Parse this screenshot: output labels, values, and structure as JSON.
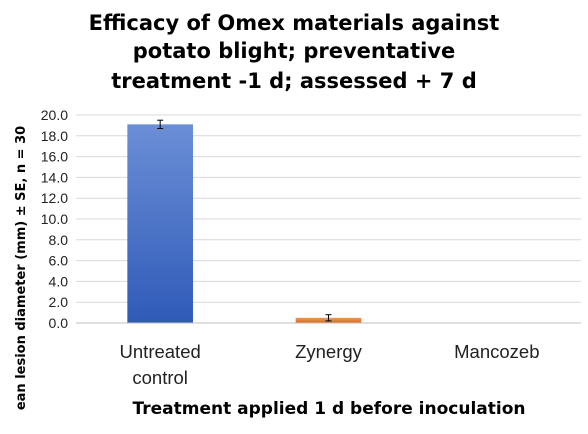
{
  "chart_data": {
    "type": "bar",
    "title_lines": [
      "Efficacy of Omex materials against",
      "potato blight; preventative",
      "treatment -1 d; assessed + 7 d"
    ],
    "xlabel": "Treatment applied 1 d before inoculation",
    "ylabel": "ean lesion diameter (mm) ± SE, n = 30",
    "categories": [
      {
        "lines": [
          "Untreated",
          "control"
        ]
      },
      {
        "lines": [
          "Zynergy"
        ]
      },
      {
        "lines": [
          "Mancozeb"
        ]
      }
    ],
    "values": [
      19.1,
      0.5,
      0
    ],
    "errors": [
      0.4,
      0.3,
      0
    ],
    "colors": [
      "#4472c4",
      "#ed7d31",
      "#a5a5a5"
    ],
    "ylim": [
      0,
      20
    ],
    "yticks": [
      "0.0",
      "2.0",
      "4.0",
      "6.0",
      "8.0",
      "10.0",
      "12.0",
      "14.0",
      "16.0",
      "18.0",
      "20.0"
    ],
    "grid": true,
    "legend": "none"
  }
}
